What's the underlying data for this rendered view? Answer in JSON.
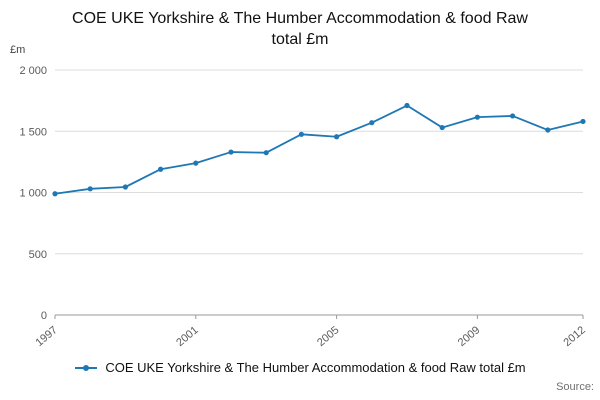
{
  "page": {
    "source_label": "Source:"
  },
  "chart_data": {
    "type": "line",
    "title": "COE UKE Yorkshire & The Humber Accommodation & food Raw total £m",
    "unit_label": "£m",
    "x": [
      1997,
      1998,
      1999,
      2000,
      2001,
      2002,
      2003,
      2004,
      2005,
      2006,
      2007,
      2008,
      2009,
      2010,
      2011,
      2012
    ],
    "values": [
      990,
      1030,
      1045,
      1190,
      1240,
      1330,
      1325,
      1475,
      1455,
      1570,
      1710,
      1530,
      1615,
      1625,
      1510,
      1580
    ],
    "ylim": [
      0,
      2000
    ],
    "y_ticks": {
      "values": [
        0,
        500,
        1000,
        1500,
        2000
      ],
      "labels": [
        "0",
        "500",
        "1 000",
        "1 500",
        "2 000"
      ]
    },
    "x_tick_years": [
      1997,
      2001,
      2005,
      2009,
      2012
    ],
    "line_color": "#1f77b4",
    "grid_color": "#dcdcdc",
    "axis_color": "#9a9a9a",
    "tick_text_color": "#5a5a5a",
    "legend": [
      {
        "label": "COE UKE Yorkshire & The Humber Accommodation & food Raw total £m"
      }
    ]
  }
}
